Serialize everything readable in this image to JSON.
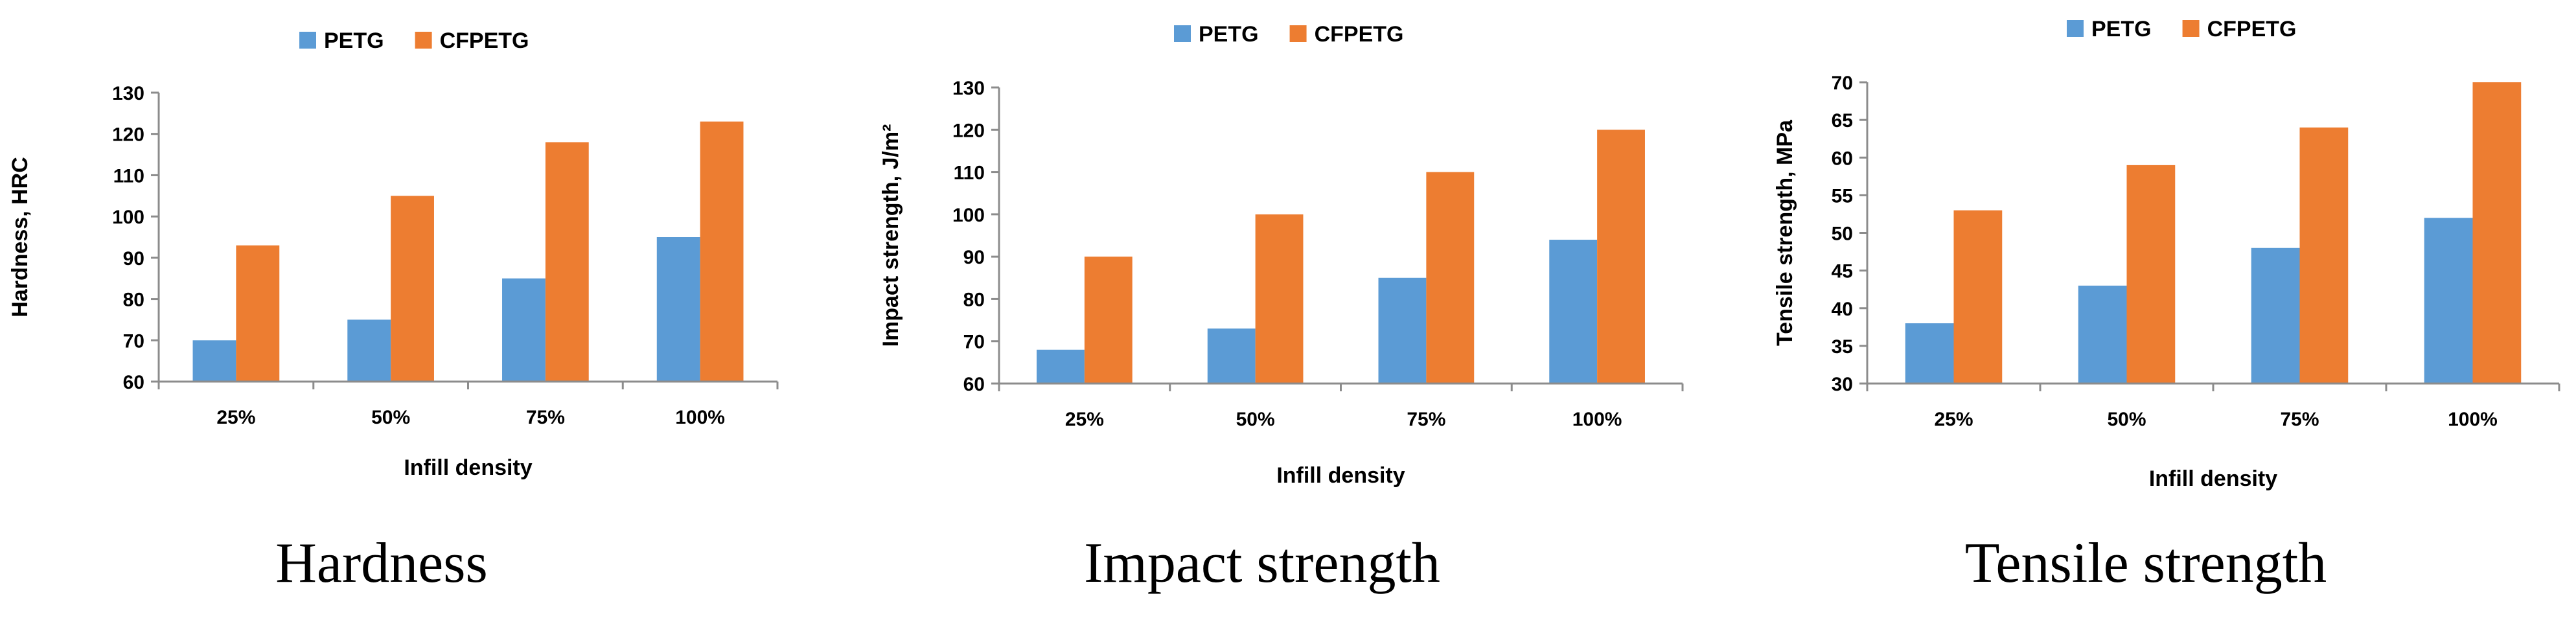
{
  "chart_data": [
    {
      "type": "bar",
      "title": "Hardness",
      "xlabel": "Infill density",
      "ylabel": "Hardness, HRC",
      "categories": [
        "25%",
        "50%",
        "75%",
        "100%"
      ],
      "ylim": [
        60,
        130
      ],
      "yticks": [
        60,
        70,
        80,
        90,
        100,
        110,
        120,
        130
      ],
      "grid": false,
      "legend_position": "top",
      "series": [
        {
          "name": "PETG",
          "color": "#5b9bd5",
          "values": [
            70,
            75,
            85,
            95
          ]
        },
        {
          "name": "CFPETG",
          "color": "#ed7d31",
          "values": [
            93,
            105,
            118,
            123
          ]
        }
      ]
    },
    {
      "type": "bar",
      "title": "Impact strength",
      "xlabel": "Infill  density",
      "ylabel": "Impact strength, J/m²",
      "categories": [
        "25%",
        "50%",
        "75%",
        "100%"
      ],
      "ylim": [
        60,
        130
      ],
      "yticks": [
        60,
        70,
        80,
        90,
        100,
        110,
        120,
        130
      ],
      "grid": false,
      "legend_position": "top",
      "series": [
        {
          "name": "PETG",
          "color": "#5b9bd5",
          "values": [
            68,
            73,
            85,
            94
          ]
        },
        {
          "name": "CFPETG",
          "color": "#ed7d31",
          "values": [
            90,
            100,
            110,
            120
          ]
        }
      ]
    },
    {
      "type": "bar",
      "title": "Tensile strength",
      "xlabel": "Infill  density",
      "ylabel": "Tensile strength, MPa",
      "categories": [
        "25%",
        "50%",
        "75%",
        "100%"
      ],
      "ylim": [
        30,
        70
      ],
      "yticks": [
        30,
        35,
        40,
        45,
        50,
        55,
        60,
        65,
        70
      ],
      "grid": false,
      "legend_position": "top",
      "series": [
        {
          "name": "PETG",
          "color": "#5b9bd5",
          "values": [
            38,
            43,
            48,
            52
          ]
        },
        {
          "name": "CFPETG",
          "color": "#ed7d31",
          "values": [
            53,
            59,
            64,
            70
          ]
        }
      ]
    }
  ]
}
